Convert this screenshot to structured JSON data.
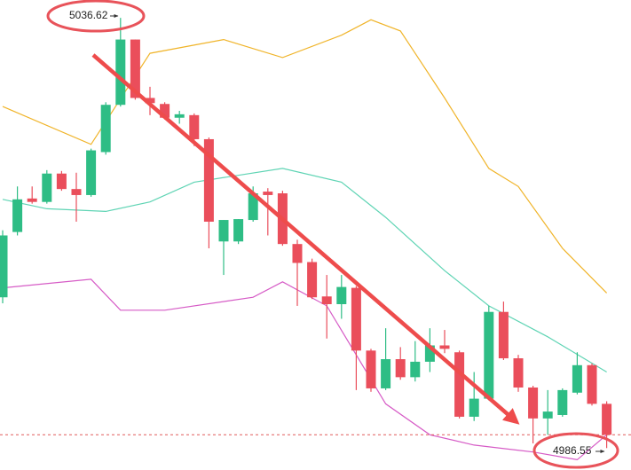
{
  "chart_data": {
    "type": "candlestick",
    "ylim": [
      4984.0,
      5038.7
    ],
    "up_color": "#2ebd85",
    "down_color": "#ea4e5b",
    "open": [
      5004.1,
      5011.7,
      5015.6,
      5015.2,
      5018.5,
      5016.7,
      5016.0,
      5021.0,
      5026.5,
      5034.1,
      5027.3,
      5026.6,
      5025.0,
      5025.3,
      5022.5,
      5010.6,
      5010.6,
      5013.1,
      5016.4,
      5016.2,
      5010.3,
      5008.2,
      5004.2,
      5003.3,
      5005.2,
      4997.9,
      4993.5,
      4996.9,
      4994.8,
      4996.6,
      4998.5,
      4997.7,
      4990.2,
      4992.3,
      5002.4,
      4997.0,
      4993.6,
      4990.0,
      4990.4,
      4993.0,
      4996.2,
      4991.7
    ],
    "high": [
      5011.9,
      5017.0,
      5017.0,
      5018.9,
      5018.8,
      5018.6,
      5021.4,
      5026.8,
      5036.62,
      5034.1,
      5028.6,
      5026.8,
      5025.8,
      5025.5,
      5022.7,
      5013.1,
      5013.2,
      5017.0,
      5016.8,
      5016.5,
      5010.8,
      5008.6,
      5006.7,
      5006.7,
      5005.4,
      4998.1,
      5000.5,
      4998.3,
      4999.0,
      5000.5,
      5000.3,
      4997.9,
      4995.4,
      5003.1,
      5003.6,
      4997.4,
      4993.8,
      4993.3,
      4993.5,
      4997.7,
      4996.4,
      4992.0
    ],
    "low": [
      5003.4,
      5011.3,
      5015.0,
      5015.0,
      5016.5,
      5012.9,
      5015.8,
      5020.7,
      5026.3,
      5027.1,
      5025.3,
      5024.8,
      5024.3,
      5021.7,
      5009.8,
      5006.7,
      5010.3,
      5012.9,
      5011.3,
      5010.1,
      5003.1,
      5003.9,
      4999.3,
      5001.6,
      4993.3,
      4993.1,
      4993.3,
      4994.5,
      4994.3,
      4995.4,
      4997.6,
      4990.0,
      4989.7,
      4992.1,
      4996.8,
      4993.1,
      4987.1,
      4988.1,
      4990.2,
      4992.8,
      4991.5,
      4986.55
    ],
    "close": [
      5011.3,
      5015.5,
      5015.2,
      5018.5,
      5016.7,
      5016.0,
      5021.2,
      5026.5,
      5034.1,
      5027.3,
      5026.7,
      5025.0,
      5025.4,
      5022.5,
      5012.9,
      5013.1,
      5013.2,
      5016.2,
      5016.0,
      5010.3,
      5008.1,
      5004.1,
      5003.3,
      5005.3,
      4997.9,
      4993.5,
      4996.9,
      4994.8,
      4996.6,
      4998.5,
      4998.1,
      4990.2,
      4992.3,
      5002.4,
      4997.0,
      4993.6,
      4990.0,
      4990.8,
      4993.3,
      4996.2,
      4991.7,
      4988.1
    ],
    "lines": [
      {
        "color": "#f0b429",
        "x": [
          0,
          6,
          10,
          15,
          19,
          23,
          25,
          27,
          28,
          30,
          33,
          35,
          38,
          41
        ],
        "values": [
          5026.3,
          5021.9,
          5032.5,
          5034.1,
          5032.0,
          5034.6,
          5036.4,
          5035.1,
          5032.5,
          5027.3,
          5019.1,
          5017.0,
          5009.8,
          5004.6
        ]
      },
      {
        "color": "#5fd4b4",
        "x": [
          0,
          3,
          7,
          10,
          13,
          19,
          23,
          26,
          30,
          33,
          37,
          41
        ],
        "values": [
          5015.5,
          5014.4,
          5014.1,
          5015.2,
          5017.5,
          5019.1,
          5017.5,
          5013.4,
          5007.2,
          5003.1,
          4999.5,
          4995.4
        ]
      },
      {
        "color": "#d65bc6",
        "x": [
          0,
          6,
          8,
          11,
          17,
          19,
          22,
          24,
          26,
          29,
          32,
          36,
          39,
          41
        ],
        "values": [
          5005.2,
          5006.2,
          5002.6,
          5002.6,
          5004.1,
          5005.9,
          5003.1,
          4997.4,
          4991.7,
          4988.1,
          4986.9,
          4986.1,
          4985.2,
          4988.1
        ]
      }
    ],
    "annotations": [
      {
        "text": "5036.62"
      },
      {
        "text": "4986.55"
      }
    ]
  }
}
